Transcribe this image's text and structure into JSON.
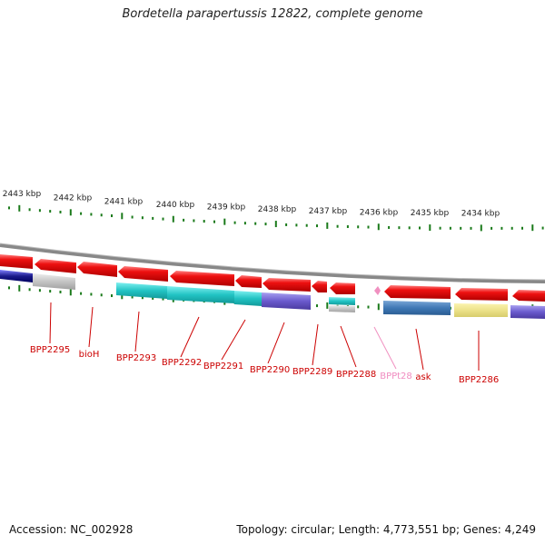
{
  "title": "Bordetella parapertussis 12822, complete genome",
  "kbp_labels": [
    "2443 kbp",
    "2442 kbp",
    "2441 kbp",
    "2440 kbp",
    "2439 kbp",
    "2438 kbp",
    "2437 kbp",
    "2436 kbp",
    "2435 kbp",
    "2434 kbp"
  ],
  "gene_labels": [
    {
      "text": "BPP2295",
      "color": "#cc0000"
    },
    {
      "text": "bioH",
      "color": "#cc0000"
    },
    {
      "text": "BPP2293",
      "color": "#cc0000"
    },
    {
      "text": "BPP2292",
      "color": "#cc0000"
    },
    {
      "text": "BPP2291",
      "color": "#cc0000"
    },
    {
      "text": "BPP2290",
      "color": "#cc0000"
    },
    {
      "text": "BPP2289",
      "color": "#cc0000"
    },
    {
      "text": "BPP2288",
      "color": "#cc0000"
    },
    {
      "text": "BPPt28",
      "color": "#f08cc0"
    },
    {
      "text": "ask",
      "color": "#cc0000"
    },
    {
      "text": "BPP2286",
      "color": "#cc0000"
    }
  ],
  "colors": {
    "gene": "#ee1111",
    "trna": "#f090c0",
    "tick": "#1a7a1a",
    "backbone": "#888888"
  },
  "footer": {
    "accession": "Accession: NC_002928",
    "summary": "Topology: circular; Length: 4,773,551 bp; Genes: 4,249"
  }
}
